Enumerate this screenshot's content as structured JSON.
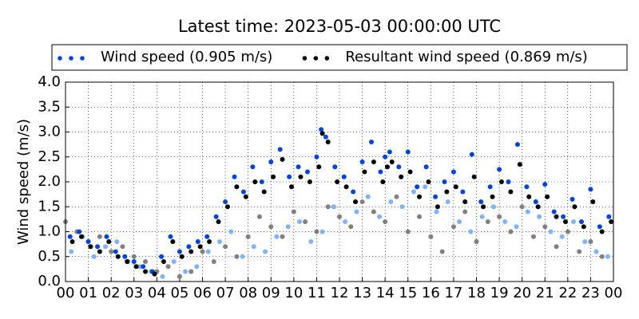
{
  "chart_data": {
    "type": "scatter",
    "title": "Latest time: 2023-05-03 00:00:00 UTC",
    "y_label": "Wind speed (m/s)",
    "xlim": [
      0,
      24
    ],
    "ylim": [
      0,
      4
    ],
    "xticks": [
      {
        "value": 0,
        "label": "00"
      },
      {
        "value": 1,
        "label": "01"
      },
      {
        "value": 2,
        "label": "02"
      },
      {
        "value": 3,
        "label": "03"
      },
      {
        "value": 4,
        "label": "04"
      },
      {
        "value": 5,
        "label": "05"
      },
      {
        "value": 6,
        "label": "06"
      },
      {
        "value": 7,
        "label": "07"
      },
      {
        "value": 8,
        "label": "08"
      },
      {
        "value": 9,
        "label": "09"
      },
      {
        "value": 10,
        "label": "10"
      },
      {
        "value": 11,
        "label": "11"
      },
      {
        "value": 12,
        "label": "12"
      },
      {
        "value": 13,
        "label": "13"
      },
      {
        "value": 14,
        "label": "14"
      },
      {
        "value": 15,
        "label": "15"
      },
      {
        "value": 16,
        "label": "16"
      },
      {
        "value": 17,
        "label": "17"
      },
      {
        "value": 18,
        "label": "18"
      },
      {
        "value": 19,
        "label": "19"
      },
      {
        "value": 20,
        "label": "20"
      },
      {
        "value": 21,
        "label": "21"
      },
      {
        "value": 22,
        "label": "22"
      },
      {
        "value": 23,
        "label": "23"
      },
      {
        "value": 24,
        "label": "00"
      }
    ],
    "yticks": [
      {
        "value": 0,
        "label": "0.0"
      },
      {
        "value": 0.5,
        "label": "0.5"
      },
      {
        "value": 1,
        "label": "1.0"
      },
      {
        "value": 1.5,
        "label": "1.5"
      },
      {
        "value": 2,
        "label": "2.0"
      },
      {
        "value": 2.5,
        "label": "2.5"
      },
      {
        "value": 3,
        "label": "3.0"
      },
      {
        "value": 3.5,
        "label": "3.5"
      },
      {
        "value": 4,
        "label": "4.0"
      }
    ],
    "grid": true,
    "legend": "top",
    "series": [
      {
        "color": "#80b3ff",
        "x": [
          0.25,
          0.75,
          1.25,
          1.75,
          2.25,
          2.75,
          3.25,
          3.75,
          4.25,
          4.75,
          5.25,
          5.75,
          6.25,
          6.75,
          7.25,
          7.75,
          8.25,
          8.75,
          9.25,
          9.75,
          10.25,
          10.75,
          11.25,
          11.75,
          12.25,
          12.75,
          13.25,
          13.75,
          14.25,
          14.75,
          15.25,
          15.75,
          16.25,
          16.75,
          17.25,
          17.75,
          18.25,
          18.75,
          19.25,
          19.75,
          20.25,
          20.75,
          21.25,
          21.75,
          22.25,
          22.75,
          23.25,
          23.75
        ],
        "values": [
          0.6,
          0.9,
          0.5,
          0.7,
          0.8,
          0.4,
          0.3,
          0.2,
          0.1,
          0.4,
          0.2,
          0.3,
          0.6,
          0.8,
          1.0,
          0.5,
          0.7,
          0.6,
          0.9,
          1.1,
          1.2,
          0.8,
          1.0,
          1.5,
          1.2,
          1.4,
          1.7,
          1.3,
          1.6,
          1.5,
          1.8,
          1.9,
          1.4,
          1.6,
          1.2,
          1.0,
          1.3,
          1.5,
          1.2,
          1.1,
          1.4,
          1.3,
          1.0,
          0.9,
          1.2,
          0.8,
          0.6,
          0.5
        ]
      },
      {
        "color": "#808080",
        "x": [
          0,
          0.5,
          1,
          1.5,
          2,
          2.5,
          3,
          3.5,
          4,
          4.5,
          5,
          5.5,
          6,
          6.5,
          7,
          7.5,
          8,
          8.5,
          9,
          9.5,
          10,
          10.5,
          11,
          11.5,
          12,
          12.5,
          13,
          13.5,
          14,
          14.5,
          15,
          15.5,
          16,
          16.5,
          17,
          17.5,
          18,
          18.5,
          19,
          19.5,
          20,
          20.5,
          21,
          21.5,
          22,
          22.5,
          23,
          23.5
        ],
        "values": [
          1.2,
          1.0,
          0.8,
          0.9,
          0.6,
          0.7,
          0.5,
          0.4,
          0.2,
          0.3,
          0.1,
          0.2,
          0.6,
          0.4,
          0.7,
          0.5,
          0.9,
          1.3,
          1.1,
          0.9,
          1.4,
          1.2,
          1.0,
          1.5,
          1.3,
          1.1,
          1.6,
          1.4,
          1.2,
          1.7,
          1.0,
          1.3,
          0.9,
          0.6,
          1.1,
          1.4,
          0.8,
          1.2,
          1.3,
          1.0,
          1.5,
          0.9,
          1.1,
          0.7,
          1.0,
          0.6,
          0.8,
          0.5
        ]
      },
      {
        "name": "Wind speed (0.905 m/s)",
        "color": "#0044dd",
        "x": [
          0.2,
          0.6,
          1.0,
          1.4,
          1.8,
          2.2,
          2.6,
          3.0,
          3.4,
          3.8,
          4.2,
          4.6,
          5.0,
          5.4,
          5.8,
          6.2,
          6.6,
          7.0,
          7.4,
          7.8,
          8.2,
          8.6,
          9.0,
          9.4,
          9.8,
          10.2,
          10.6,
          11.0,
          11.2,
          11.4,
          11.8,
          12.2,
          12.6,
          13.0,
          13.4,
          13.8,
          14.0,
          14.2,
          14.6,
          15.0,
          15.4,
          15.8,
          16.2,
          16.6,
          17.0,
          17.4,
          17.8,
          18.2,
          18.6,
          19.0,
          19.4,
          19.8,
          20.2,
          20.6,
          21.0,
          21.4,
          21.8,
          22.2,
          22.6,
          23.0,
          23.4,
          23.8
        ],
        "values": [
          0.9,
          1.0,
          0.8,
          0.7,
          0.9,
          0.6,
          0.5,
          0.4,
          0.3,
          0.2,
          0.5,
          0.9,
          0.6,
          0.7,
          0.8,
          0.9,
          1.3,
          1.6,
          2.1,
          1.8,
          2.3,
          2.0,
          2.4,
          2.65,
          2.1,
          2.3,
          2.2,
          2.5,
          3.05,
          2.9,
          2.3,
          2.1,
          1.8,
          2.4,
          2.8,
          2.2,
          2.5,
          2.6,
          2.3,
          2.6,
          1.9,
          2.3,
          1.7,
          2.0,
          2.2,
          1.8,
          2.55,
          1.6,
          1.9,
          2.25,
          2.0,
          2.75,
          1.9,
          1.6,
          1.95,
          1.4,
          1.3,
          1.65,
          1.2,
          1.85,
          1.1,
          1.3
        ]
      },
      {
        "name": "Resultant wind speed (0.869 m/s)",
        "color": "#000000",
        "x": [
          0.3,
          0.7,
          1.1,
          1.5,
          1.9,
          2.3,
          2.7,
          3.1,
          3.5,
          3.9,
          4.3,
          4.7,
          5.1,
          5.5,
          5.9,
          6.3,
          6.7,
          7.1,
          7.5,
          7.9,
          8.3,
          8.7,
          9.1,
          9.5,
          9.9,
          10.3,
          10.7,
          11.1,
          11.25,
          11.5,
          11.9,
          12.3,
          12.7,
          13.1,
          13.5,
          13.9,
          14.1,
          14.3,
          14.7,
          15.1,
          15.5,
          15.9,
          16.3,
          16.7,
          17.1,
          17.5,
          17.9,
          18.3,
          18.7,
          19.1,
          19.5,
          19.9,
          20.3,
          20.7,
          21.1,
          21.5,
          21.9,
          22.3,
          22.7,
          23.1,
          23.5,
          23.9
        ],
        "values": [
          0.8,
          0.9,
          0.7,
          0.6,
          0.8,
          0.5,
          0.4,
          0.3,
          0.2,
          0.15,
          0.4,
          0.8,
          0.5,
          0.6,
          0.7,
          0.8,
          1.2,
          1.5,
          1.9,
          1.7,
          2.0,
          1.8,
          2.1,
          2.45,
          1.9,
          2.1,
          2.0,
          2.3,
          2.97,
          2.8,
          2.0,
          1.9,
          1.6,
          2.2,
          2.4,
          2.0,
          2.3,
          2.4,
          2.1,
          2.2,
          1.7,
          2.0,
          1.5,
          1.8,
          1.9,
          1.6,
          2.1,
          1.5,
          1.7,
          2.0,
          1.8,
          2.35,
          1.7,
          1.5,
          1.7,
          1.3,
          1.2,
          1.5,
          1.1,
          1.6,
          1.0,
          1.2
        ]
      }
    ]
  }
}
